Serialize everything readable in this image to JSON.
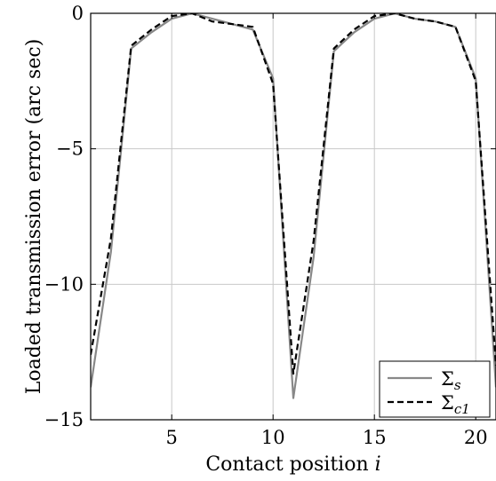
{
  "chart_data": {
    "type": "line",
    "title": "",
    "xlabel": "Contact position",
    "xlabel_var": "i",
    "ylabel": "Loaded transmission error (arc sec)",
    "xlim": [
      1,
      21
    ],
    "ylim": [
      -15,
      0
    ],
    "xticks": [
      5,
      10,
      15,
      20
    ],
    "xtick_labels": [
      "5",
      "10",
      "15",
      "20"
    ],
    "yticks": [
      0,
      -5,
      -10,
      -15
    ],
    "ytick_labels": [
      "0",
      "−5",
      "−10",
      "−15"
    ],
    "grid": true,
    "legend_position": "bottom-right",
    "series": [
      {
        "name": "Σ_s",
        "legend_base": "Σ",
        "legend_sub": "s",
        "color": "#888888",
        "style": "solid",
        "x": [
          1,
          2,
          3,
          4,
          5,
          6,
          7,
          8,
          9,
          10,
          11,
          12,
          13,
          14,
          15,
          16,
          17,
          18,
          19,
          20,
          21
        ],
        "values": [
          -13.8,
          -8.8,
          -1.3,
          -0.7,
          -0.2,
          0.0,
          -0.2,
          -0.4,
          -0.6,
          -2.4,
          -14.2,
          -9.0,
          -1.4,
          -0.7,
          -0.2,
          0.0,
          -0.2,
          -0.3,
          -0.5,
          -2.4,
          -13.8
        ]
      },
      {
        "name": "Σ_c1",
        "legend_base": "Σ",
        "legend_sub": "c1",
        "color": "#000000",
        "style": "dashed",
        "x": [
          1,
          2,
          3,
          4,
          5,
          6,
          7,
          8,
          9,
          10,
          11,
          12,
          13,
          14,
          15,
          16,
          17,
          18,
          19,
          20,
          21
        ],
        "values": [
          -12.6,
          -8.3,
          -1.2,
          -0.6,
          -0.1,
          0.0,
          -0.3,
          -0.4,
          -0.5,
          -2.6,
          -13.3,
          -8.4,
          -1.3,
          -0.6,
          -0.1,
          0.0,
          -0.2,
          -0.3,
          -0.5,
          -2.5,
          -13.0
        ]
      }
    ]
  }
}
